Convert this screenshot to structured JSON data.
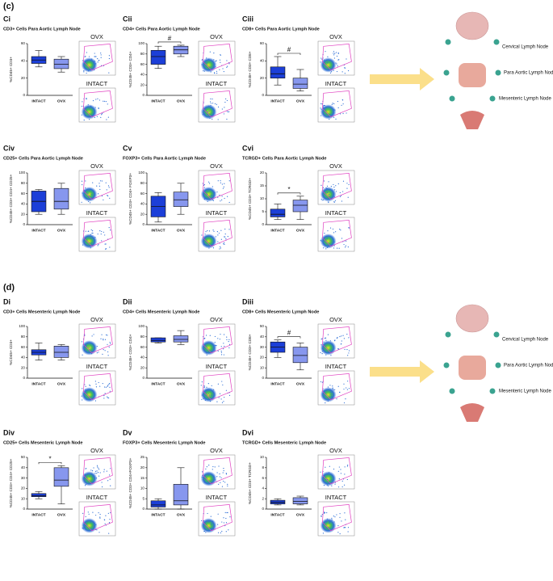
{
  "figure": {
    "sections": [
      "(c)",
      "(d)"
    ],
    "diagram_labels": [
      [
        "Cervical Lymph Node",
        "Para Aortic Lymph Node",
        "Mesenteric Lymph Node"
      ],
      [
        "Cervical Lymph Node",
        "Para Aortic Lymph Node",
        "Mesenteric Lymph Node"
      ]
    ]
  },
  "chart_data": [
    {
      "type": "box",
      "panel": "Ci",
      "title": "CD3+ Cells Para Aortic Lymph Node",
      "ylabel": "%CD45+ CD3+",
      "categories": [
        "INTACT",
        "OVX"
      ],
      "colors": [
        "#1c3fd8",
        "#8797ee"
      ],
      "min": [
        33,
        27
      ],
      "q1": [
        37,
        31
      ],
      "median": [
        41,
        36
      ],
      "q3": [
        45,
        42
      ],
      "max": [
        52,
        45
      ],
      "ylim": [
        0,
        60
      ],
      "yticks": [
        0,
        20,
        40,
        60
      ],
      "flow_labels": [
        "OVX",
        "INTACT"
      ]
    },
    {
      "type": "box",
      "panel": "Cii",
      "title": "CD4+ Cells Para Aortic Lymph Node",
      "ylabel": "%CD45+ CD3+ CD4+",
      "categories": [
        "INTACT",
        "OVX"
      ],
      "colors": [
        "#1c3fd8",
        "#8797ee"
      ],
      "min": [
        52,
        75
      ],
      "q1": [
        60,
        80
      ],
      "median": [
        75,
        88
      ],
      "q3": [
        87,
        95
      ],
      "max": [
        95,
        97
      ],
      "ylim": [
        0,
        100
      ],
      "yticks": [
        0,
        20,
        40,
        60,
        80,
        100
      ],
      "annotation": "#",
      "flow_labels": [
        "OVX",
        "INTACT"
      ]
    },
    {
      "type": "box",
      "panel": "Ciii",
      "title": "CD8+ Cells Para Aortic Lymph Node",
      "ylabel": "%CD45+ CD3+ CD8+",
      "categories": [
        "INTACT",
        "OVX"
      ],
      "colors": [
        "#1c3fd8",
        "#8797ee"
      ],
      "min": [
        12,
        5
      ],
      "q1": [
        20,
        8
      ],
      "median": [
        25,
        13
      ],
      "q3": [
        33,
        20
      ],
      "max": [
        45,
        30
      ],
      "ylim": [
        0,
        60
      ],
      "yticks": [
        0,
        20,
        40,
        60
      ],
      "annotation": "#",
      "flow_labels": [
        "OVX",
        "INTACT"
      ]
    },
    {
      "type": "box",
      "panel": "Civ",
      "title": "CD25+ Cells Para Aortic Lymph Node",
      "ylabel": "%CD45+ CD3+ CD4+ CD25+",
      "categories": [
        "INTACT",
        "OVX"
      ],
      "colors": [
        "#1c3fd8",
        "#8797ee"
      ],
      "min": [
        20,
        20
      ],
      "q1": [
        25,
        30
      ],
      "median": [
        45,
        45
      ],
      "q3": [
        65,
        70
      ],
      "max": [
        68,
        80
      ],
      "ylim": [
        0,
        100
      ],
      "yticks": [
        0,
        20,
        40,
        60,
        80,
        100
      ],
      "flow_labels": [
        "OVX",
        "INTACT"
      ]
    },
    {
      "type": "box",
      "panel": "Cv",
      "title": "FOXP3+ Cells Para Aortic Lymph Node",
      "ylabel": "%CD45+ CD3+ CD4+ FOXP3+",
      "categories": [
        "INTACT",
        "OVX"
      ],
      "colors": [
        "#1c3fd8",
        "#8797ee"
      ],
      "min": [
        5,
        20
      ],
      "q1": [
        15,
        35
      ],
      "median": [
        35,
        48
      ],
      "q3": [
        55,
        63
      ],
      "max": [
        62,
        80
      ],
      "ylim": [
        0,
        100
      ],
      "yticks": [
        0,
        20,
        40,
        60,
        80,
        100
      ],
      "flow_labels": [
        "OVX",
        "INTACT"
      ]
    },
    {
      "type": "box",
      "panel": "Cvi",
      "title": "TCRGD+ Cells Para Aortic Lymph Node",
      "ylabel": "%CD45+ CD3+ TCRGD+",
      "categories": [
        "INTACT",
        "OVX"
      ],
      "colors": [
        "#1c3fd8",
        "#8797ee"
      ],
      "min": [
        2,
        2
      ],
      "q1": [
        3,
        5
      ],
      "median": [
        4,
        7.5
      ],
      "q3": [
        6,
        9.5
      ],
      "max": [
        8,
        11
      ],
      "ylim": [
        0,
        20
      ],
      "yticks": [
        0,
        5,
        10,
        15,
        20
      ],
      "annotation": "*",
      "flow_labels": [
        "OVX",
        "INTACT"
      ]
    },
    {
      "type": "box",
      "panel": "Di",
      "title": "CD3+ Cells Mesenteric Lymph Node",
      "ylabel": "%CD45+ CD3+",
      "categories": [
        "INTACT",
        "OVX"
      ],
      "colors": [
        "#1c3fd8",
        "#8797ee"
      ],
      "min": [
        35,
        35
      ],
      "q1": [
        45,
        40
      ],
      "median": [
        50,
        50
      ],
      "q3": [
        55,
        62
      ],
      "max": [
        68,
        65
      ],
      "ylim": [
        0,
        100
      ],
      "yticks": [
        0,
        20,
        40,
        60,
        80,
        100
      ],
      "flow_labels": [
        "OVX",
        "INTACT"
      ]
    },
    {
      "type": "box",
      "panel": "Dii",
      "title": "CD4+ Cells Mesenteric Lymph Node",
      "ylabel": "%CD45+ CD3+ CD4+",
      "categories": [
        "INTACT",
        "OVX"
      ],
      "colors": [
        "#1c3fd8",
        "#8797ee"
      ],
      "min": [
        68,
        65
      ],
      "q1": [
        70,
        70
      ],
      "median": [
        73,
        75
      ],
      "q3": [
        78,
        82
      ],
      "max": [
        78,
        92
      ],
      "ylim": [
        0,
        100
      ],
      "yticks": [
        0,
        20,
        40,
        60,
        80,
        100
      ],
      "flow_labels": [
        "OVX",
        "INTACT"
      ]
    },
    {
      "type": "box",
      "panel": "Diii",
      "title": "CD8+ Cells Mesenteric Lymph Node",
      "ylabel": "%CD45+ CD3+ CD8+",
      "categories": [
        "INTACT",
        "OVX"
      ],
      "colors": [
        "#1c3fd8",
        "#8797ee"
      ],
      "min": [
        20,
        8
      ],
      "q1": [
        25,
        15
      ],
      "median": [
        30,
        22
      ],
      "q3": [
        35,
        30
      ],
      "max": [
        37,
        34
      ],
      "ylim": [
        0,
        50
      ],
      "yticks": [
        0,
        10,
        20,
        30,
        40,
        50
      ],
      "annotation": "#",
      "flow_labels": [
        "OVX",
        "INTACT"
      ]
    },
    {
      "type": "box",
      "panel": "Div",
      "title": "CD25+ Cells Mesenteric Lymph Node",
      "ylabel": "%CD45+ CD3+ CD4+ CD25+",
      "categories": [
        "INTACT",
        "OVX"
      ],
      "colors": [
        "#1c3fd8",
        "#8797ee"
      ],
      "min": [
        10,
        5
      ],
      "q1": [
        12,
        22
      ],
      "median": [
        13,
        28
      ],
      "q3": [
        15,
        40
      ],
      "max": [
        17,
        42
      ],
      "ylim": [
        0,
        50
      ],
      "yticks": [
        0,
        10,
        20,
        30,
        40,
        50
      ],
      "annotation": "*",
      "flow_labels": [
        "OVX",
        "INTACT"
      ]
    },
    {
      "type": "box",
      "panel": "Dv",
      "title": "FOXP3+ Cells Mesenteric Lymph Node",
      "ylabel": "%CD45+ CD3+ CD4+FOXP3+",
      "categories": [
        "INTACT",
        "OVX"
      ],
      "colors": [
        "#1c3fd8",
        "#8797ee"
      ],
      "min": [
        0,
        0
      ],
      "q1": [
        1,
        2
      ],
      "median": [
        2,
        4
      ],
      "q3": [
        4,
        12
      ],
      "max": [
        5,
        20
      ],
      "ylim": [
        0,
        25
      ],
      "yticks": [
        0,
        5,
        10,
        15,
        20,
        25
      ],
      "flow_labels": [
        "OVX",
        "INTACT"
      ]
    },
    {
      "type": "box",
      "panel": "Dvi",
      "title": "TCRGD+ Cells Mesenteric Lymph Node",
      "ylabel": "%CD45+ CD3+ TCRGD+",
      "categories": [
        "INTACT",
        "OVX"
      ],
      "colors": [
        "#1c3fd8",
        "#8797ee"
      ],
      "min": [
        0.8,
        0.8
      ],
      "q1": [
        1,
        1
      ],
      "median": [
        1.3,
        1.5
      ],
      "q3": [
        1.7,
        2.2
      ],
      "max": [
        2,
        2.5
      ],
      "ylim": [
        0,
        10
      ],
      "yticks": [
        0,
        2,
        4,
        6,
        8,
        10
      ],
      "flow_labels": [
        "OVX",
        "INTACT"
      ]
    }
  ]
}
